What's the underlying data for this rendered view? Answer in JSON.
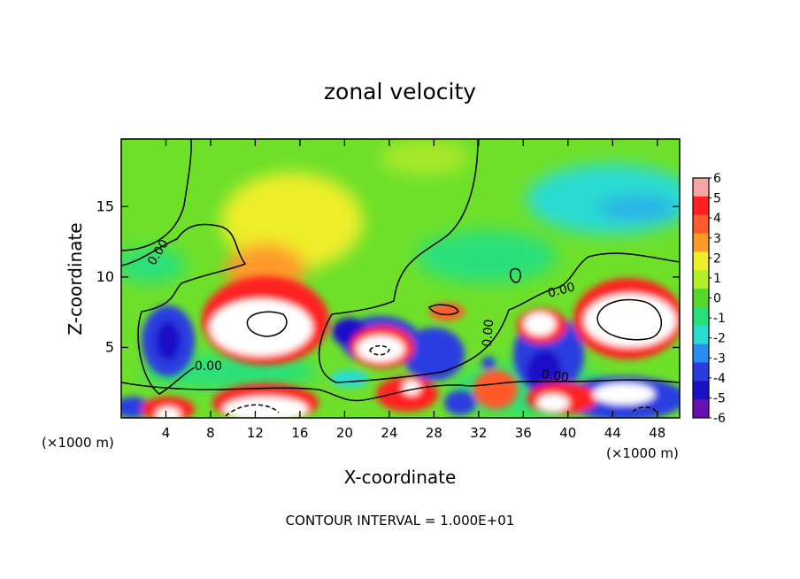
{
  "chart_data": {
    "type": "heatmap",
    "title": "zonal velocity",
    "xlabel": "X-coordinate",
    "ylabel": "Z-coordinate",
    "x_unit_left": "(×1000 m)",
    "x_unit_right": "(×1000 m)",
    "footer": "CONTOUR INTERVAL = 1.000E+01",
    "xlim": [
      0,
      50
    ],
    "ylim": [
      0,
      19.8
    ],
    "x_ticks": [
      4,
      8,
      12,
      16,
      20,
      24,
      28,
      32,
      36,
      40,
      44,
      48
    ],
    "y_ticks": [
      5,
      10,
      15
    ],
    "colorbar": {
      "ticks": [
        6,
        5,
        4,
        3,
        2,
        1,
        0,
        -1,
        -2,
        -3,
        -4,
        -5,
        -6
      ],
      "colors": [
        "#f4a6a6",
        "#ff2020",
        "#ff5a2a",
        "#ff9a2a",
        "#f0ee2a",
        "#b4ee2a",
        "#5ad82a",
        "#2ae07a",
        "#2adcd2",
        "#2a8cf0",
        "#2a3ce0",
        "#1a10c8",
        "#6a10b0"
      ]
    },
    "contour_labels": [
      {
        "text": "0.00",
        "x": 3.6,
        "y": 11.6,
        "rotate": -58
      },
      {
        "text": "0.00",
        "x": 7.8,
        "y": 3.4,
        "rotate": 0
      },
      {
        "text": "0.00",
        "x": 33.2,
        "y": 6.0,
        "rotate": -85
      },
      {
        "text": "0.00",
        "x": 38.8,
        "y": 2.7,
        "rotate": 8
      },
      {
        "text": "0.00",
        "x": 39.5,
        "y": 8.8,
        "rotate": -15
      }
    ],
    "features": [
      {
        "name": "positive-core-west",
        "x": 12.5,
        "y": 6.9,
        "value": 6.5
      },
      {
        "name": "positive-core-east",
        "x": 44.8,
        "y": 7.2,
        "value": 6.5
      },
      {
        "name": "positive-core-center",
        "x": 23.5,
        "y": 4.8,
        "value": 6.2
      },
      {
        "name": "positive-core-36",
        "x": 36.5,
        "y": 6.8,
        "value": 6.2
      },
      {
        "name": "negative-core-4",
        "x": 4.5,
        "y": 5.5,
        "value": -5.0
      },
      {
        "name": "negative-core-20",
        "x": 21.0,
        "y": 5.8,
        "value": -4.5
      },
      {
        "name": "negative-core-28",
        "x": 27.0,
        "y": 4.2,
        "value": -4.0
      },
      {
        "name": "negative-core-38",
        "x": 38.5,
        "y": 4.5,
        "value": -4.5
      },
      {
        "name": "negative-upper-east",
        "x": 45.0,
        "y": 15.2,
        "value": -2.6
      }
    ]
  }
}
